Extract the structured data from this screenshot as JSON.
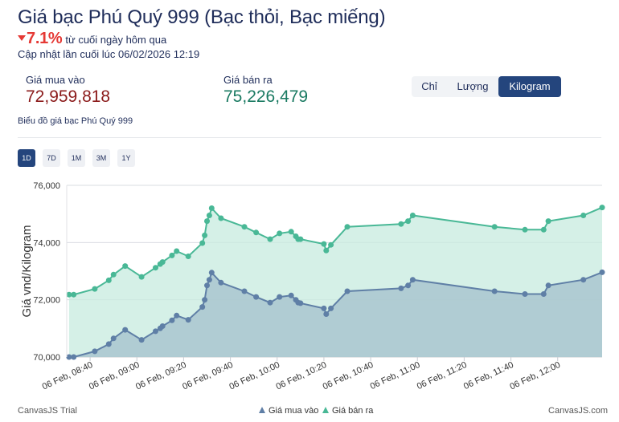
{
  "header": {
    "title": "Giá bạc Phú Quý 999 (Bạc thỏi, Bạc miếng)",
    "change_value": "7.1%",
    "change_text": "từ cuối ngày hôm qua",
    "updated": "Cập nhật lần cuối lúc 06/02/2026 12:19"
  },
  "prices": {
    "buy_label": "Giá mua vào",
    "buy_value": "72,959,818",
    "sell_label": "Giá bán ra",
    "sell_value": "75,226,479"
  },
  "unit_tabs": {
    "items": [
      "Chỉ",
      "Lượng",
      "Kilogram"
    ],
    "selected": "Kilogram"
  },
  "chart_caption": "Biểu đồ giá bạc Phú Quý 999",
  "range_buttons": {
    "items": [
      "1D",
      "7D",
      "1M",
      "3M",
      "1Y"
    ],
    "selected": "1D"
  },
  "colors": {
    "buy_line": "#5f7fa6",
    "buy_fill": "#a9c6cf",
    "sell_line": "#49b896",
    "sell_fill": "#c7ebdf",
    "accent": "#24457d",
    "down": "#e53935"
  },
  "chart_data": {
    "type": "area",
    "ylabel": "Giá vnd/Kilogram",
    "ylim": [
      70000,
      76000
    ],
    "yticks": [
      70000,
      72000,
      74000,
      76000
    ],
    "ytick_labels": [
      "70,000",
      "72,000",
      "74,000",
      "76,000"
    ],
    "xlim": [
      "08:30",
      "12:19"
    ],
    "xticks": [
      "08:40",
      "09:00",
      "09:20",
      "09:40",
      "10:00",
      "10:20",
      "10:40",
      "11:00",
      "11:20",
      "11:40",
      "12:00"
    ],
    "xtick_labels": [
      "06 Feb, 08:40",
      "06 Feb, 09:00",
      "06 Feb, 09:20",
      "06 Feb, 09:40",
      "06 Feb, 10:00",
      "06 Feb, 10:20",
      "06 Feb, 10:40",
      "06 Feb, 11:00",
      "06 Feb, 11:20",
      "06 Feb, 11:40",
      "06 Feb, 12:00"
    ],
    "x": [
      "08:31",
      "08:33",
      "08:42",
      "08:48",
      "08:50",
      "08:55",
      "09:02",
      "09:08",
      "09:10",
      "09:11",
      "09:15",
      "09:17",
      "09:22",
      "09:28",
      "09:29",
      "09:30",
      "09:31",
      "09:32",
      "09:36",
      "09:46",
      "09:51",
      "09:57",
      "10:01",
      "10:06",
      "10:08",
      "10:09",
      "10:10",
      "10:20",
      "10:21",
      "10:23",
      "10:30",
      "10:53",
      "10:56",
      "10:58",
      "11:33",
      "11:46",
      "11:54",
      "11:56",
      "12:11",
      "12:19"
    ],
    "series": [
      {
        "name": "Giá mua vào",
        "values": [
          70000,
          70000,
          70200,
          70450,
          70650,
          70950,
          70600,
          70900,
          71000,
          71080,
          71280,
          71450,
          71300,
          71750,
          72000,
          72500,
          72700,
          72950,
          72600,
          72300,
          72100,
          71900,
          72100,
          72150,
          72000,
          71900,
          71880,
          71700,
          71500,
          71700,
          72300,
          72400,
          72500,
          72700,
          72300,
          72200,
          72200,
          72500,
          72700,
          72960
        ]
      },
      {
        "name": "Giá bán ra",
        "values": [
          72180,
          72180,
          72380,
          72680,
          72880,
          73180,
          72800,
          73120,
          73250,
          73320,
          73550,
          73700,
          73520,
          73980,
          74250,
          74750,
          74950,
          75200,
          74850,
          74550,
          74350,
          74120,
          74320,
          74380,
          74220,
          74120,
          74120,
          73950,
          73720,
          73920,
          74550,
          74650,
          74750,
          74950,
          74550,
          74450,
          74450,
          74750,
          74950,
          75226
        ]
      }
    ]
  },
  "chart_footer": {
    "left": "CanvasJS Trial",
    "right": "CanvasJS.com"
  }
}
